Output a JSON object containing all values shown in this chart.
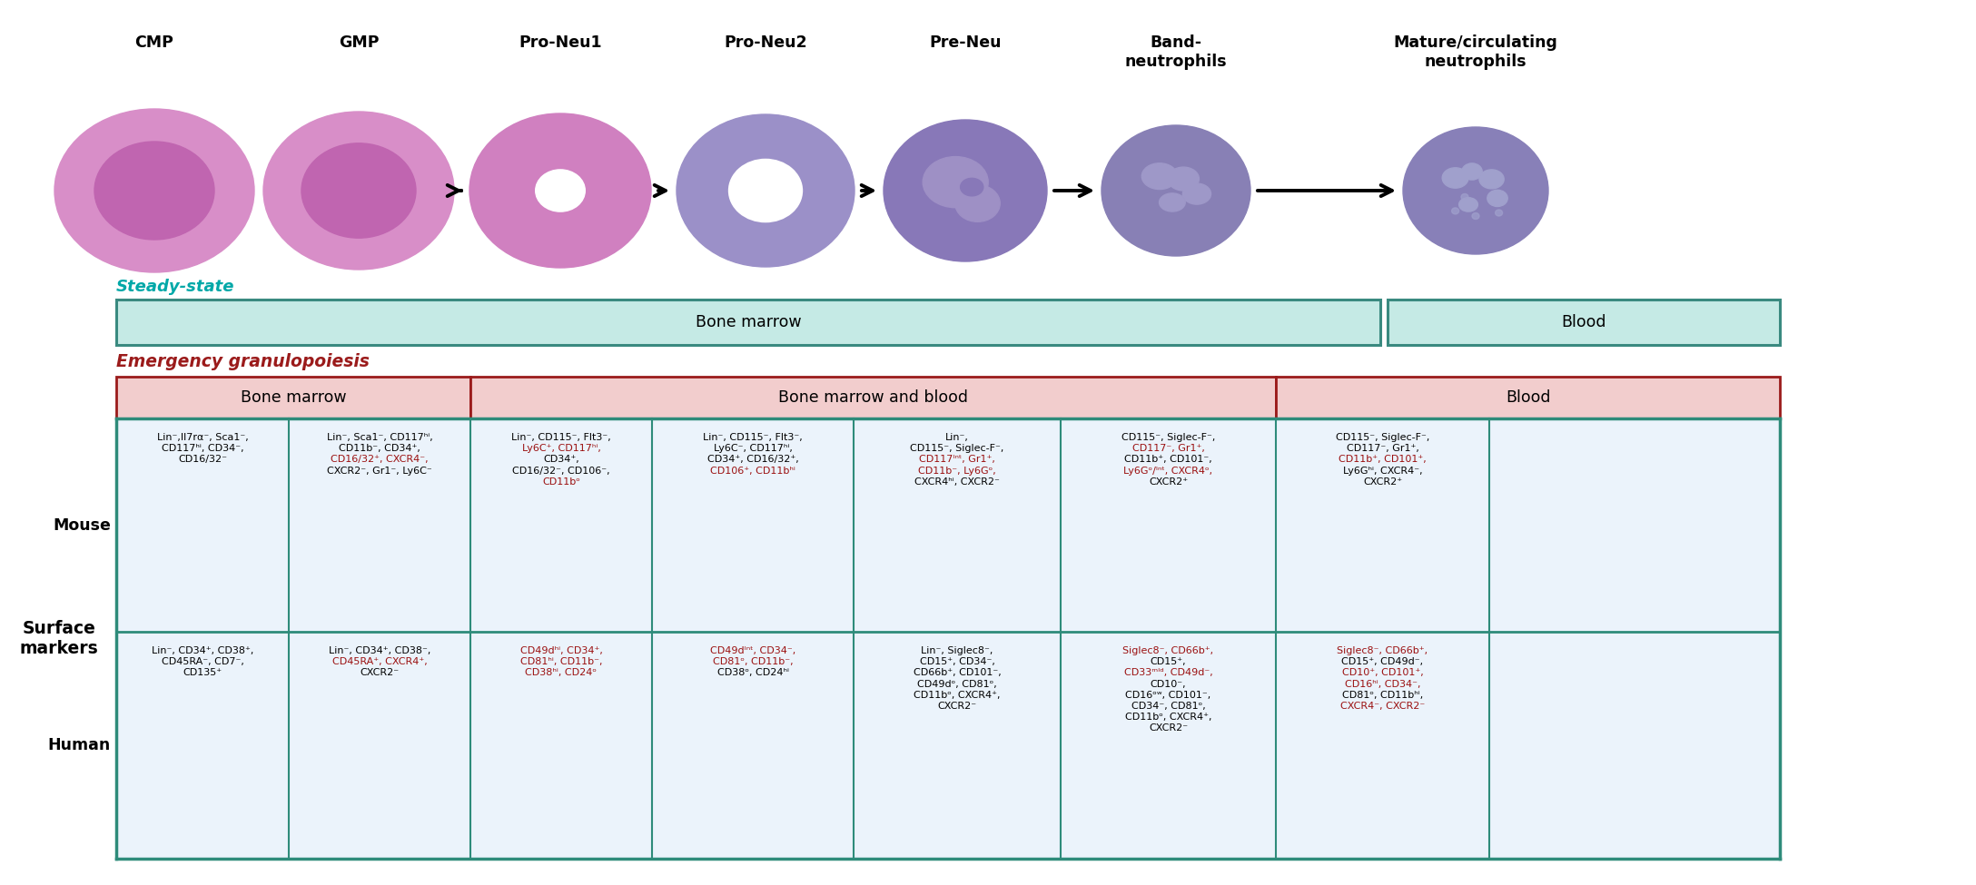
{
  "cell_labels": [
    "CMP",
    "GMP",
    "Pro-Neu1",
    "Pro-Neu2",
    "Pre-Neu",
    "Band-\nneutrophils",
    "Mature/circulating\nneutrophils"
  ],
  "steady_state_color": "#00A8A8",
  "steady_bar_fill": "#C5EAE5",
  "steady_bar_border": "#3A8A80",
  "emergency_color": "#9B1B1B",
  "header_fill": "#F2CDCD",
  "header_border": "#9B1B1B",
  "table_bg": "#EBF3FB",
  "table_border_teal": "#2E8B7A",
  "cell_colors": {
    "CMP_outer": "#D88EC8",
    "CMP_inner": "#C065B0",
    "GMP_outer": "#D88EC8",
    "GMP_inner": "#C065B0",
    "ProNeu1_outer": "#D080C0",
    "ProNeu1_inner": "#B870A8",
    "ProNeu2_outer": "#9B90C8",
    "ProNeu2_inner": "#B8A8DC",
    "PreNeu_outer": "#8878B8",
    "PreNeu_inner": "#9E90C5",
    "Band_outer": "#8880B5",
    "Band_inner": "#9E98C8",
    "Mature_outer": "#8880B8",
    "Mature_inner": "#A0A0CC"
  }
}
